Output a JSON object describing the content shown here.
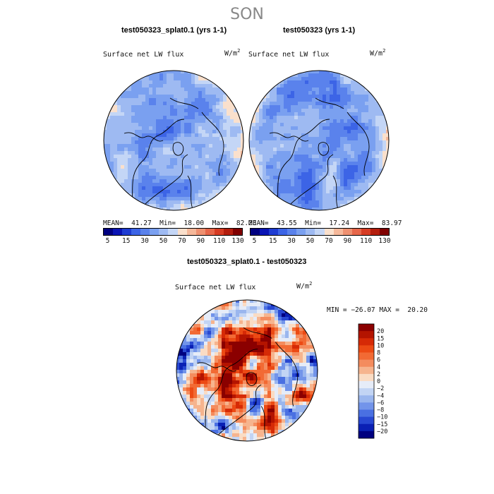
{
  "season": "SON",
  "panels": [
    {
      "title": "test050323_splat0.1 (yrs 1-1)",
      "variable": "Surface net LW flux",
      "units_base": "W/m",
      "units_exp": "2",
      "stats": {
        "mean_label": "MEAN=",
        "mean": "41.27",
        "min_label": "Min=",
        "min": "18.00",
        "max_label": "Max=",
        "max": "82.23"
      }
    },
    {
      "title": "test050323 (yrs 1-1)",
      "variable": "Surface net LW flux",
      "units_base": "W/m",
      "units_exp": "2",
      "stats": {
        "mean_label": "MEAN=",
        "mean": "43.55",
        "min_label": "Min=",
        "min": "17.24",
        "max_label": "Max=",
        "max": "83.97"
      }
    }
  ],
  "diff_panel": {
    "title": "test050323_splat0.1 - test050323",
    "variable": "Surface net LW flux",
    "units_base": "W/m",
    "units_exp": "2",
    "minmax": "MIN = −26.07 MAX =  20.20"
  },
  "chart_data": [
    {
      "type": "heatmap",
      "title": "test050323_splat0.1 (yrs 1-1)",
      "variable": "Surface net LW flux",
      "units": "W/m2",
      "projection": "north polar stereographic",
      "stats": {
        "mean": 41.27,
        "min": 18.0,
        "max": 82.23
      },
      "colorbar_levels": [
        5,
        10,
        15,
        20,
        30,
        40,
        50,
        60,
        70,
        80,
        90,
        100,
        110,
        120,
        130
      ],
      "colorbar_labels": [
        "5",
        "15",
        "30",
        "50",
        "70",
        "90",
        "110",
        "130"
      ]
    },
    {
      "type": "heatmap",
      "title": "test050323 (yrs 1-1)",
      "variable": "Surface net LW flux",
      "units": "W/m2",
      "projection": "north polar stereographic",
      "stats": {
        "mean": 43.55,
        "min": 17.24,
        "max": 83.97
      },
      "colorbar_levels": [
        5,
        10,
        15,
        20,
        30,
        40,
        50,
        60,
        70,
        80,
        90,
        100,
        110,
        120,
        130
      ],
      "colorbar_labels": [
        "5",
        "15",
        "30",
        "50",
        "70",
        "90",
        "110",
        "130"
      ]
    },
    {
      "type": "heatmap",
      "title": "test050323_splat0.1 - test050323",
      "variable": "Surface net LW flux",
      "units": "W/m2",
      "projection": "north polar stereographic",
      "stats": {
        "min": -26.07,
        "max": 20.2
      },
      "colorbar_levels": [
        -20,
        -15,
        -10,
        -8,
        -6,
        -4,
        -2,
        0,
        2,
        4,
        6,
        8,
        10,
        15,
        20
      ],
      "colorbar_labels": [
        "20",
        "15",
        "10",
        "8",
        "6",
        "4",
        "2",
        "0",
        "−2",
        "−4",
        "−6",
        "−8",
        "−10",
        "−15",
        "−20"
      ]
    }
  ],
  "colors": {
    "seq": [
      "#000080",
      "#0a14b4",
      "#1e3cd2",
      "#3c64e6",
      "#5a82ec",
      "#7aa0f0",
      "#9ebaf2",
      "#c4d6f6",
      "#fae0cc",
      "#f5b89a",
      "#ee9070",
      "#e6664a",
      "#d63c24",
      "#b41e0e",
      "#800000"
    ],
    "div": [
      "#8b0000",
      "#b41400",
      "#d62a06",
      "#ec4a14",
      "#f26a34",
      "#f48c5e",
      "#f6b48e",
      "#fadcc4",
      "#e6ecf8",
      "#c2d4f4",
      "#9ab6ee",
      "#7294ea",
      "#4a70e2",
      "#2848d2",
      "#0a20b4",
      "#000080"
    ]
  }
}
